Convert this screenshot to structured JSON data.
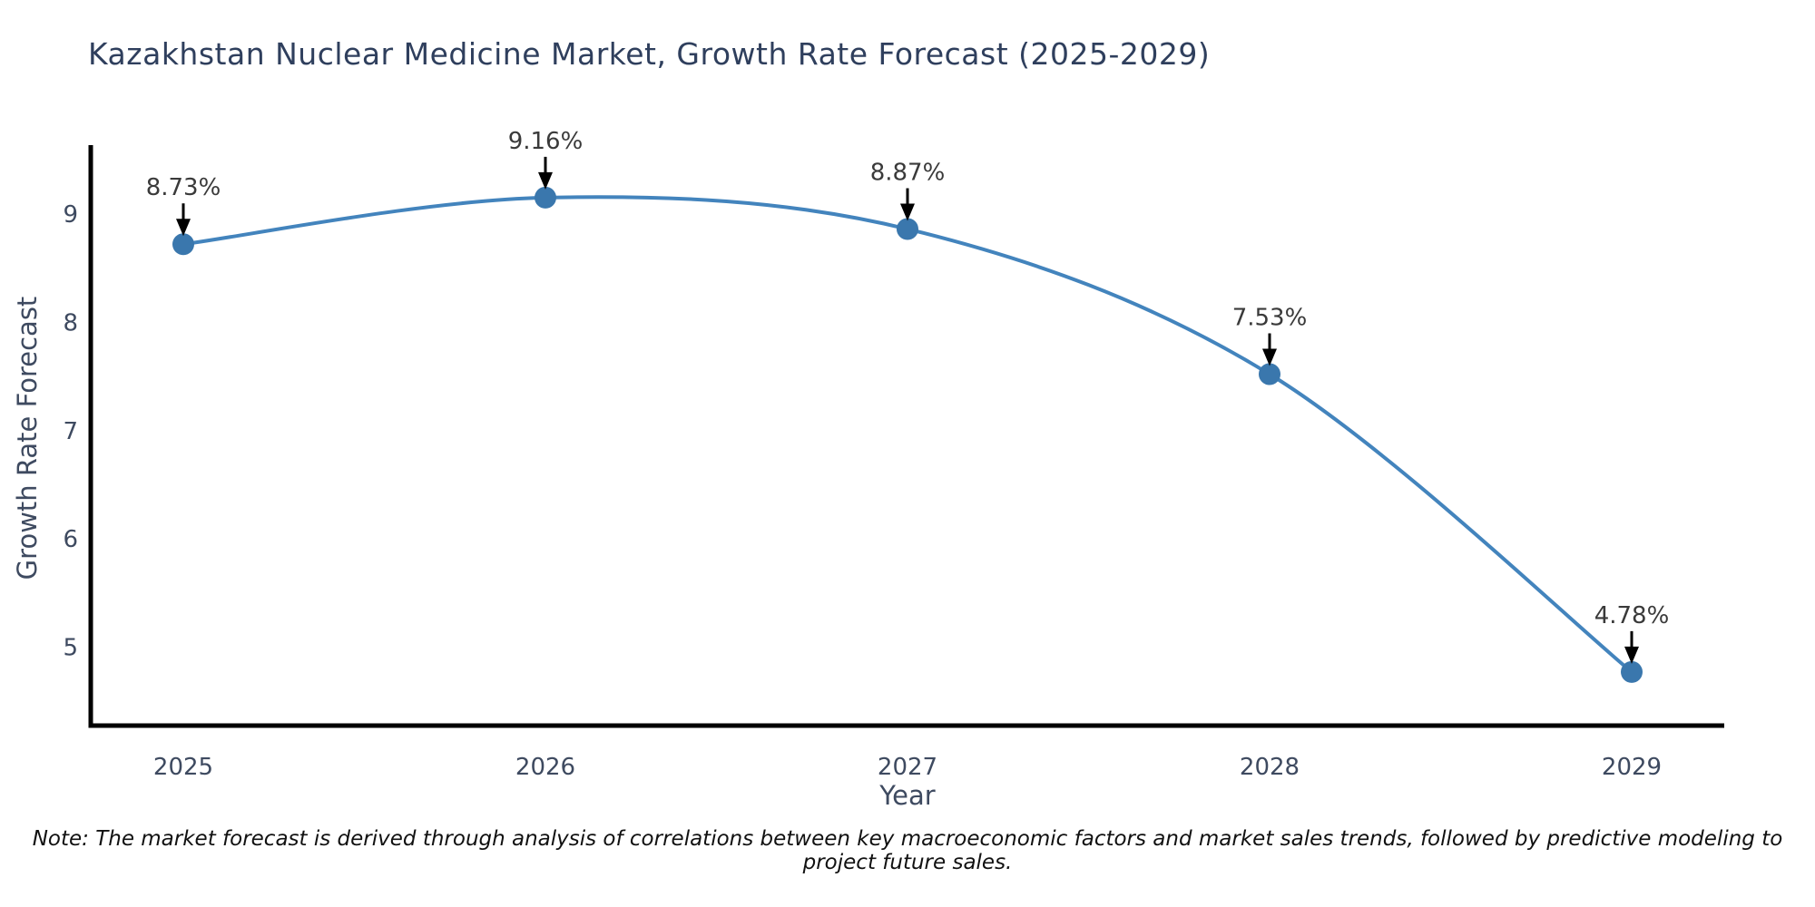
{
  "title": "Kazakhstan Nuclear Medicine Market, Growth Rate Forecast (2025-2029)",
  "note": "Note: The market forecast is derived through analysis of correlations between key macroeconomic factors and market sales trends, followed by predictive modeling to project future sales.",
  "chart_data": {
    "type": "line",
    "title": "Kazakhstan Nuclear Medicine Market, Growth Rate Forecast (2025-2029)",
    "xlabel": "Year",
    "ylabel": "Growth Rate Forecast",
    "categories": [
      "2025",
      "2026",
      "2027",
      "2028",
      "2029"
    ],
    "x": [
      2025,
      2026,
      2027,
      2028,
      2029
    ],
    "values": [
      8.73,
      9.16,
      8.87,
      7.53,
      4.78
    ],
    "point_labels": [
      "8.73%",
      "9.16%",
      "8.87%",
      "7.53%",
      "4.78%"
    ],
    "yticks": [
      5,
      6,
      7,
      8,
      9
    ],
    "ylim": [
      4.29,
      9.64
    ],
    "xlim": [
      2024.74,
      2029.26
    ],
    "grid": false,
    "legend": "none",
    "smooth_spline": true,
    "annotation_style": "black-down-arrow",
    "colors": {
      "line": "#4384bd",
      "marker": "#3a77ad",
      "arrow": "#000000",
      "axis_spine": "#000000",
      "tick_label": "#3e4a60",
      "axis_title": "#3e4a60",
      "chart_title": "#2f3f5d",
      "annotation_text": "#3a3a3a",
      "background": "#ffffff"
    }
  }
}
